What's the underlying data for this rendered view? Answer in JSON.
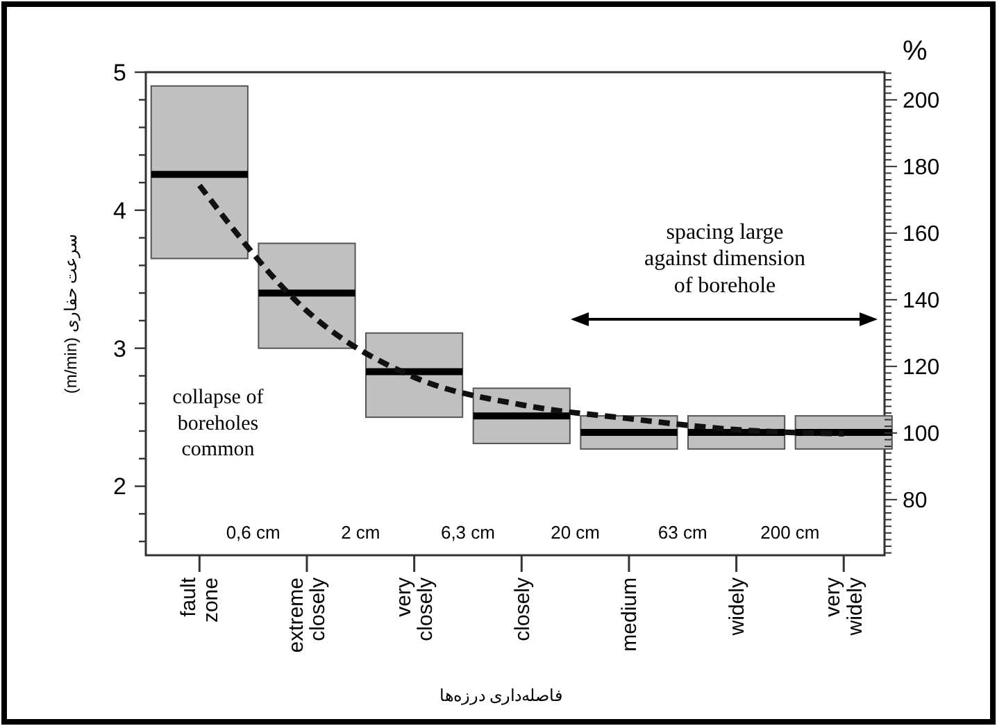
{
  "chart_data": {
    "type": "box",
    "xlabel": "فاصله‌داری درزه‌ها",
    "ylabel": "سرعت حفاری (m/min)",
    "y2label": "%",
    "categories": [
      "fault zone",
      "extreme closely",
      "very closely",
      "closely",
      "medium",
      "widely",
      "very widely"
    ],
    "ylim": [
      1.5,
      5
    ],
    "yticks": [
      {
        "value": 1.6,
        "label": null
      },
      {
        "value": 1.8,
        "label": null
      },
      2,
      {
        "value": 2.2,
        "label": null
      },
      {
        "value": 2.4,
        "label": null
      },
      {
        "value": 2.6,
        "label": null
      },
      {
        "value": 2.8,
        "label": null
      },
      3,
      {
        "value": 3.2,
        "label": null
      },
      {
        "value": 3.4,
        "label": null
      },
      {
        "value": 3.6,
        "label": null
      },
      {
        "value": 3.8,
        "label": null
      },
      4,
      {
        "value": 4.2,
        "label": null
      },
      {
        "value": 4.4,
        "label": null
      },
      {
        "value": 4.6,
        "label": null
      },
      {
        "value": 4.8,
        "label": null
      },
      5
    ],
    "y2lim": [
      63.3,
      208.3
    ],
    "y2ticks": [
      {
        "value": 64,
        "label": null
      },
      {
        "value": 66,
        "label": null
      },
      {
        "value": 68,
        "label": null
      },
      {
        "value": 70,
        "label": null
      },
      {
        "value": 72,
        "label": null
      },
      {
        "value": 74,
        "label": null
      },
      {
        "value": 76,
        "label": null
      },
      {
        "value": 78,
        "label": null
      },
      80,
      {
        "value": 82,
        "label": null
      },
      {
        "value": 84,
        "label": null
      },
      {
        "value": 86,
        "label": null
      },
      {
        "value": 88,
        "label": null
      },
      {
        "value": 90,
        "label": null
      },
      {
        "value": 92,
        "label": null
      },
      {
        "value": 94,
        "label": null
      },
      {
        "value": 96,
        "label": null
      },
      {
        "value": 98,
        "label": null
      },
      100,
      {
        "value": 102,
        "label": null
      },
      {
        "value": 104,
        "label": null
      },
      {
        "value": 106,
        "label": null
      },
      {
        "value": 108,
        "label": null
      },
      {
        "value": 110,
        "label": null
      },
      {
        "value": 112,
        "label": null
      },
      {
        "value": 114,
        "label": null
      },
      {
        "value": 116,
        "label": null
      },
      {
        "value": 118,
        "label": null
      },
      120,
      {
        "value": 122,
        "label": null
      },
      {
        "value": 124,
        "label": null
      },
      {
        "value": 126,
        "label": null
      },
      {
        "value": 128,
        "label": null
      },
      {
        "value": 130,
        "label": null
      },
      {
        "value": 132,
        "label": null
      },
      {
        "value": 134,
        "label": null
      },
      {
        "value": 136,
        "label": null
      },
      {
        "value": 138,
        "label": null
      },
      140,
      {
        "value": 142,
        "label": null
      },
      {
        "value": 144,
        "label": null
      },
      {
        "value": 146,
        "label": null
      },
      {
        "value": 148,
        "label": null
      },
      {
        "value": 150,
        "label": null
      },
      {
        "value": 152,
        "label": null
      },
      {
        "value": 154,
        "label": null
      },
      {
        "value": 156,
        "label": null
      },
      {
        "value": 158,
        "label": null
      },
      160,
      {
        "value": 162,
        "label": null
      },
      {
        "value": 164,
        "label": null
      },
      {
        "value": 166,
        "label": null
      },
      {
        "value": 168,
        "label": null
      },
      {
        "value": 170,
        "label": null
      },
      {
        "value": 172,
        "label": null
      },
      {
        "value": 174,
        "label": null
      },
      {
        "value": 176,
        "label": null
      },
      {
        "value": 178,
        "label": null
      },
      180,
      {
        "value": 182,
        "label": null
      },
      {
        "value": 184,
        "label": null
      },
      {
        "value": 186,
        "label": null
      },
      {
        "value": 188,
        "label": null
      },
      {
        "value": 190,
        "label": null
      },
      {
        "value": 192,
        "label": null
      },
      {
        "value": 194,
        "label": null
      },
      {
        "value": 196,
        "label": null
      },
      {
        "value": 198,
        "label": null
      },
      200,
      {
        "value": 202,
        "label": null
      },
      {
        "value": 204,
        "label": null
      },
      {
        "value": 206,
        "label": null
      },
      {
        "value": 208,
        "label": null
      }
    ],
    "series": [
      {
        "color": "#c0c0c0",
        "boxes": [
          {
            "low": 3.65,
            "q1": 3.65,
            "median": 4.26,
            "q3": 4.9,
            "high": 4.9
          },
          {
            "low": 3.0,
            "q1": 3.0,
            "median": 3.4,
            "q3": 3.76,
            "high": 3.76
          },
          {
            "low": 2.5,
            "q1": 2.5,
            "median": 2.83,
            "q3": 3.11,
            "high": 3.11
          },
          {
            "low": 2.31,
            "q1": 2.31,
            "median": 2.51,
            "q3": 2.71,
            "high": 2.71
          },
          {
            "low": 2.27,
            "q1": 2.27,
            "median": 2.39,
            "q3": 2.51,
            "high": 2.51
          },
          {
            "low": 2.27,
            "q1": 2.27,
            "median": 2.39,
            "q3": 2.51,
            "high": 2.51
          },
          {
            "low": 2.27,
            "q1": 2.27,
            "median": 2.39,
            "q3": 2.51,
            "high": 2.51
          }
        ]
      },
      {
        "type": "line",
        "color": "#111111",
        "line_style": "dashed",
        "marker": "none",
        "values": [
          4.18,
          3.27,
          2.79,
          2.59,
          2.49,
          2.41,
          2.38
        ]
      }
    ],
    "annotations": [
      "collapse of boreholes common",
      "spacing large against dimension of borehole",
      "0,6 cm",
      "2 cm",
      "6,3 cm",
      "20 cm",
      "63 cm",
      "200 cm"
    ]
  }
}
